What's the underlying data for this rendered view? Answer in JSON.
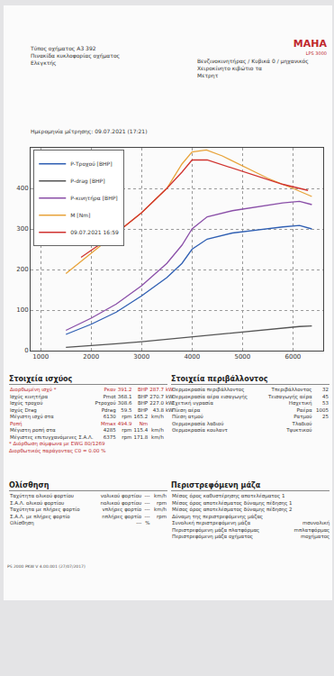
{
  "header": {
    "logo": "MAHA",
    "logo_sub": "LPS 3000",
    "left": [
      "Τύπος οχήματος A3 392",
      "Πινακίδα κυκλοφορίας οχήματος",
      "Ελεγκτής"
    ],
    "right": [
      "Βενζινοκινητήρας / Κυβικά 0 / μηχανικός",
      "Χειροκίνητο κιβώτιο τα",
      "Μετρητ"
    ]
  },
  "date": "Ημερομηνία μέτρησης: 09.07.2021 (17:21)",
  "chart_data": {
    "type": "line",
    "grid": true,
    "legend": "top-left",
    "xlim": [
      800,
      6600
    ],
    "xticks": [
      1000,
      2000,
      3000,
      4000,
      5000,
      6000
    ],
    "ylim": [
      0,
      500
    ],
    "yticks": [
      0,
      100,
      200,
      300,
      400
    ],
    "series": [
      {
        "name": "P-Τροχού [BHP]",
        "color": "#2f5fb3",
        "line_style": "solid",
        "x": [
          1500,
          2000,
          2500,
          3000,
          3500,
          3800,
          4000,
          4300,
          4800,
          5300,
          5800,
          6130,
          6375
        ],
        "values": [
          40,
          65,
          95,
          135,
          180,
          215,
          250,
          275,
          290,
          298,
          305,
          308.6,
          300
        ]
      },
      {
        "name": "P-drag [BHP]",
        "color": "#555555",
        "line_style": "solid",
        "x": [
          1500,
          2000,
          2500,
          3000,
          3500,
          4000,
          4500,
          5000,
          5500,
          6000,
          6130,
          6375
        ],
        "values": [
          8,
          12,
          17,
          22,
          28,
          35,
          41,
          46,
          52,
          58,
          59.5,
          61
        ]
      },
      {
        "name": "P-κινητήρα [BHP]",
        "color": "#8a4fa8",
        "line_style": "solid",
        "x": [
          1500,
          2000,
          2500,
          3000,
          3500,
          3800,
          4000,
          4300,
          4800,
          5300,
          5800,
          6130,
          6375
        ],
        "values": [
          50,
          80,
          115,
          160,
          215,
          260,
          300,
          330,
          345,
          355,
          364,
          368.1,
          360
        ]
      },
      {
        "name": "M [Nm]",
        "color": "#e8a33a",
        "line_style": "solid",
        "x": [
          1500,
          2000,
          2500,
          3000,
          3500,
          3800,
          4000,
          4285,
          4600,
          5000,
          5500,
          6000,
          6375
        ],
        "values": [
          190,
          240,
          290,
          340,
          400,
          460,
          490,
          494.9,
          480,
          455,
          425,
          400,
          380
        ]
      },
      {
        "name": "09.07.2021 16:59",
        "color": "#d0332f",
        "line_style": "solid",
        "x": [
          1800,
          2500,
          3000,
          3500,
          3800,
          4000,
          4300,
          4800,
          5300,
          5800,
          6300
        ],
        "values": [
          230,
          290,
          340,
          400,
          440,
          470,
          470,
          450,
          430,
          410,
          395
        ]
      }
    ]
  },
  "power": {
    "title": "Στοιχεία ισχύος",
    "rows": [
      {
        "cells": [
          "Διορθωμένη ισχύ *",
          "Pκαν",
          "391.2",
          "BHP",
          "287.7",
          "kW"
        ],
        "color": "#c0282d"
      },
      {
        "cells": [
          "Ισχύς κινητήρα",
          "Pmot",
          "368.1",
          "BHP",
          "270.7",
          "kW"
        ],
        "color": "#333333"
      },
      {
        "cells": [
          "Ισχύς τροχού",
          "Pτροχού",
          "308.6",
          "BHP",
          "227.0",
          "kW"
        ],
        "color": "#333333"
      },
      {
        "cells": [
          "Ισχύς Drag",
          "Pdrag",
          "59.5",
          "BHP",
          "43.8",
          "kW"
        ],
        "color": "#333333"
      },
      {
        "cells": [
          "Μέγιστη ισχύ στα",
          "6130",
          "rpm",
          "165.2",
          "km/h"
        ],
        "color": "#333333"
      },
      {
        "cells": [
          "Ροπή",
          "Mmax",
          "494.9",
          "Nm"
        ],
        "color": "#c0282d"
      },
      {
        "cells": [
          "Μέγιστη ροπή στα",
          "4285",
          "rpm",
          "115.4",
          "km/h"
        ],
        "color": "#333333"
      },
      {
        "cells": [
          "Μέγιστες επιτυγχανόμενες Σ.Α.Λ.",
          "6375",
          "rpm",
          "171.8",
          "km/h"
        ],
        "color": "#333333"
      }
    ],
    "notes": [
      {
        "text": "* Διόρθωση σύμφωνα με EWG 80/1269",
        "color": "#c0282d"
      },
      {
        "text": "Διορθωτικός παράγοντας C0 = 0.00 %",
        "color": "#c0282d"
      }
    ]
  },
  "environment": {
    "title": "Στοιχεία περιβάλλοντος",
    "rows": [
      {
        "cells": [
          "Θερμοκρασία περιβάλλοντος",
          "Tπεριβάλλοντος",
          "32"
        ],
        "color": "#333333"
      },
      {
        "cells": [
          "Θερμοκρασία αέρα εισαγωγής",
          "Tεισαγωγής αέρα",
          "45"
        ],
        "color": "#333333"
      },
      {
        "cells": [
          "Σχετική υγρασία",
          "Hσχετική",
          "53"
        ],
        "color": "#333333"
      },
      {
        "cells": [
          "Πίεση αέρα",
          "Pαέρα",
          "1005"
        ],
        "color": "#333333"
      },
      {
        "cells": [
          "Πίεση ατμού",
          "Pατμού",
          "25"
        ],
        "color": "#333333"
      },
      {
        "cells": [
          "Θερμοκρασία λαδιού",
          "Tλαδιού"
        ],
        "color": "#333333"
      },
      {
        "cells": [
          "Θερμοκρασία κουλαντ",
          "Tψυκτικού"
        ],
        "color": "#333333"
      }
    ]
  },
  "slip": {
    "title": "Ολίσθηση",
    "rows": [
      {
        "cells": [
          "Ταχύτητα ολικού φορτίου",
          "vολικού φορτίου",
          "---",
          "km/h"
        ],
        "color": "#333333"
      },
      {
        "cells": [
          "Σ.Α.Λ. ολικού φορτίου",
          "nολικού φορτίου",
          "---",
          "rpm"
        ],
        "color": "#333333"
      },
      {
        "cells": [
          "Ταχύτητα με πλήρες φορτίο",
          "vπλήρες φορτίο",
          "---",
          "km/h"
        ],
        "color": "#333333"
      },
      {
        "cells": [
          "Σ.Α.Λ. με πλήρες φορτίο",
          "nπλήρες φορτίο",
          "---",
          "rpm"
        ],
        "color": "#333333"
      },
      {
        "cells": [
          "Ολίσθηση",
          "---",
          "%"
        ],
        "color": "#333333"
      }
    ]
  },
  "rotating_mass": {
    "title": "Περιστρεφόμενη μάζα",
    "rows": [
      {
        "cells": [
          "Μέσος όρος καθυστέρησης αποτελέσματος 1"
        ],
        "color": "#333333"
      },
      {
        "cells": [
          "Μέσος όρος αποτελέσματος δύναμης πέδησης 1"
        ],
        "color": "#333333"
      },
      {
        "cells": [
          "Μέσος όρος αποτελέσματος δύναμης πέδησης 2"
        ],
        "color": "#333333"
      },
      {
        "cells": [
          "Δύναμη της περιστρεφόμενης μάζας"
        ],
        "color": "#333333"
      },
      {
        "cells": [
          "Συνολική περιστρεφόμενη μάζα",
          "mσυνολική"
        ],
        "color": "#333333"
      },
      {
        "cells": [
          "Περιστρεφόμενη μάζα πλατφόρμας",
          "mπλατφόρμας"
        ],
        "color": "#333333"
      },
      {
        "cells": [
          "Περιστρεφόμενη μάζα οχήματος",
          "mοχήματος"
        ],
        "color": "#333333"
      }
    ]
  },
  "footer": "PS 2000 PKW V 4.00.001 (27/07/2017)"
}
